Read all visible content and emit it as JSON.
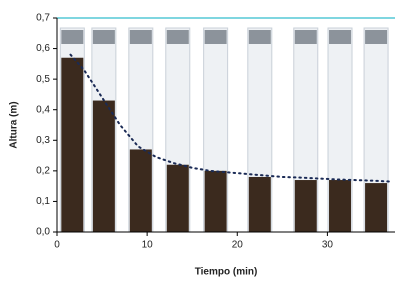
{
  "chart_data": {
    "type": "line",
    "x_label": "Tiempo (min)",
    "y_label": "Altura (m)",
    "xlim": [
      0,
      37.5
    ],
    "xticks": [
      0,
      10,
      20,
      30
    ],
    "ylim": [
      0,
      0.7
    ],
    "yticks": [
      {
        "value": 0,
        "label": "0,0"
      },
      {
        "value": 0.1,
        "label": "0,1"
      },
      {
        "value": 0.2,
        "label": "0,2"
      },
      {
        "value": 0.3,
        "label": "0,3"
      },
      {
        "value": 0.4,
        "label": "0,4"
      },
      {
        "value": 0.5,
        "label": "0,5"
      },
      {
        "value": 0.6,
        "label": "0,6"
      },
      {
        "value": 0.7,
        "label": "0,7"
      }
    ],
    "series": [
      {
        "type": "bar",
        "color": "#3b2a1e",
        "x": [
          1.7,
          5.2,
          9.3,
          13.4,
          17.6,
          22.5,
          27.6,
          31.4,
          35.4
        ],
        "values": [
          0.57,
          0.43,
          0.27,
          0.22,
          0.2,
          0.18,
          0.17,
          0.17,
          0.16
        ]
      },
      {
        "type": "line",
        "color": "#1a2a55",
        "x": [
          1.5,
          3,
          5,
          7,
          9,
          11,
          13,
          15,
          17,
          19,
          21,
          23,
          25,
          27,
          29,
          31,
          33,
          35,
          37
        ],
        "values": [
          0.58,
          0.53,
          0.44,
          0.35,
          0.28,
          0.245,
          0.225,
          0.21,
          0.2,
          0.195,
          0.19,
          0.185,
          0.18,
          0.178,
          0.175,
          0.172,
          0.17,
          0.168,
          0.165
        ]
      }
    ]
  }
}
